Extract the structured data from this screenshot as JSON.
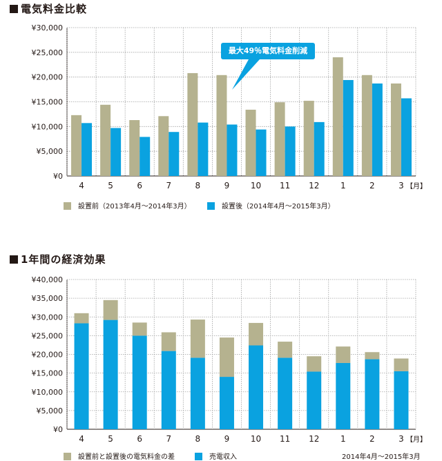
{
  "colors": {
    "before": "#b5b28f",
    "after": "#0aa2e0",
    "diff": "#b5b28f",
    "sales": "#0aa2e0",
    "grid": "#9fa0a0"
  },
  "chart1": {
    "title": "電気料金比較",
    "callout": "最大49％電気料金削減",
    "month_unit": "【月】",
    "legend": [
      {
        "label": "設置前（2013年4月～2014年3月）",
        "color": "#b5b28f"
      },
      {
        "label": "設置後（2014年4月～2015年3月）",
        "color": "#0aa2e0"
      }
    ]
  },
  "chart2": {
    "title": "1年間の経済効果",
    "month_unit": "【月】",
    "period": "2014年4月～2015年3月",
    "legend": [
      {
        "label": "設置前と設置後の電気料金の差",
        "color": "#b5b28f"
      },
      {
        "label": "売電収入",
        "color": "#0aa2e0"
      }
    ]
  },
  "chart_data": [
    {
      "type": "bar",
      "title": "電気料金比較",
      "xlabel": "【月】",
      "categories": [
        "4",
        "5",
        "6",
        "7",
        "8",
        "9",
        "10",
        "11",
        "12",
        "1",
        "2",
        "3"
      ],
      "ylim": [
        0,
        30000
      ],
      "yticks": [
        "¥0",
        "¥5,000",
        "¥10,000",
        "¥15,000",
        "¥20,000",
        "¥25,000",
        "¥30,000"
      ],
      "series": [
        {
          "name": "設置前（2013年4月～2014年3月）",
          "values": [
            12300,
            14400,
            11300,
            12100,
            20800,
            20400,
            13400,
            14900,
            15200,
            24000,
            20400,
            18700
          ]
        },
        {
          "name": "設置後（2014年4月～2015年3月）",
          "values": [
            10700,
            9700,
            7900,
            8900,
            10800,
            10400,
            9400,
            10000,
            10900,
            19400,
            18700,
            15700
          ]
        }
      ],
      "annotation": "最大49％電気料金削減"
    },
    {
      "type": "bar",
      "stacked": true,
      "title": "1年間の経済効果",
      "xlabel": "【月】",
      "categories": [
        "4",
        "5",
        "6",
        "7",
        "8",
        "9",
        "10",
        "11",
        "12",
        "1",
        "2",
        "3"
      ],
      "ylim": [
        0,
        40000
      ],
      "yticks": [
        "¥0",
        "¥5,000",
        "¥10,000",
        "¥15,000",
        "¥20,000",
        "¥25,000",
        "¥30,000",
        "¥35,000",
        "¥40,000"
      ],
      "series": [
        {
          "name": "売電収入",
          "values": [
            28300,
            29200,
            25000,
            20900,
            19100,
            14000,
            22400,
            19100,
            15400,
            17700,
            18700,
            15500
          ]
        },
        {
          "name": "設置前と設置後の電気料金の差",
          "values": [
            2700,
            5300,
            3500,
            5000,
            10200,
            10500,
            6000,
            4300,
            4100,
            4400,
            1900,
            3400
          ]
        }
      ]
    }
  ]
}
